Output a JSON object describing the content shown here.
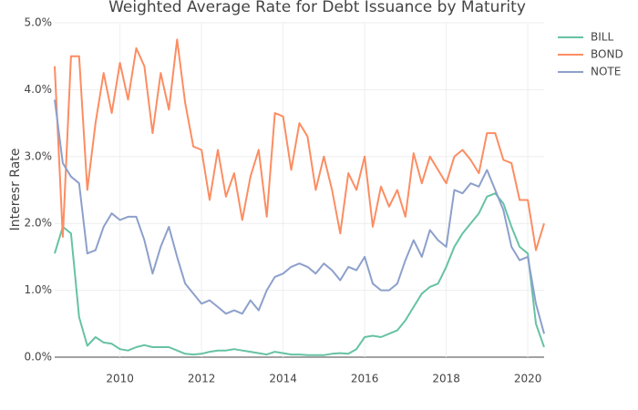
{
  "chart_data": {
    "type": "line",
    "title": "Weighted Average Rate for Debt Issuance by Maturity",
    "y_label": "Interesr Rate",
    "x": [
      2008.4,
      2008.6,
      2008.8,
      2009.0,
      2009.2,
      2009.4,
      2009.6,
      2009.8,
      2010.0,
      2010.2,
      2010.4,
      2010.6,
      2010.8,
      2011.0,
      2011.2,
      2011.4,
      2011.6,
      2011.8,
      2012.0,
      2012.2,
      2012.4,
      2012.6,
      2012.8,
      2013.0,
      2013.2,
      2013.4,
      2013.6,
      2013.8,
      2014.0,
      2014.2,
      2014.4,
      2014.6,
      2014.8,
      2015.0,
      2015.2,
      2015.4,
      2015.6,
      2015.8,
      2016.0,
      2016.2,
      2016.4,
      2016.6,
      2016.8,
      2017.0,
      2017.2,
      2017.4,
      2017.6,
      2017.8,
      2018.0,
      2018.2,
      2018.4,
      2018.6,
      2018.8,
      2019.0,
      2019.2,
      2019.4,
      2019.6,
      2019.8,
      2020.0,
      2020.2,
      2020.4
    ],
    "series": [
      {
        "name": "BILL",
        "color": "#66c2a5",
        "values": [
          1.55,
          1.95,
          1.85,
          0.6,
          0.17,
          0.3,
          0.22,
          0.2,
          0.12,
          0.1,
          0.15,
          0.18,
          0.15,
          0.15,
          0.15,
          0.1,
          0.05,
          0.04,
          0.05,
          0.08,
          0.1,
          0.1,
          0.12,
          0.1,
          0.08,
          0.06,
          0.04,
          0.08,
          0.06,
          0.04,
          0.04,
          0.03,
          0.03,
          0.03,
          0.05,
          0.06,
          0.05,
          0.12,
          0.3,
          0.32,
          0.3,
          0.35,
          0.4,
          0.55,
          0.75,
          0.95,
          1.05,
          1.1,
          1.35,
          1.65,
          1.85,
          2.0,
          2.15,
          2.4,
          2.45,
          2.3,
          1.95,
          1.65,
          1.55,
          0.5,
          0.15
        ]
      },
      {
        "name": "BOND",
        "color": "#fc8d62",
        "values": [
          4.35,
          1.8,
          4.5,
          4.5,
          2.5,
          3.5,
          4.25,
          3.65,
          4.4,
          3.85,
          4.62,
          4.35,
          3.35,
          4.25,
          3.7,
          4.75,
          3.8,
          3.15,
          3.1,
          2.35,
          3.1,
          2.4,
          2.75,
          2.05,
          2.7,
          3.1,
          2.1,
          3.65,
          3.6,
          2.8,
          3.5,
          3.3,
          2.5,
          3.0,
          2.5,
          1.85,
          2.75,
          2.5,
          3.0,
          1.95,
          2.55,
          2.25,
          2.5,
          2.1,
          3.05,
          2.6,
          3.0,
          2.8,
          2.6,
          3.0,
          3.1,
          2.95,
          2.75,
          3.35,
          3.35,
          2.95,
          2.9,
          2.35,
          2.35,
          1.6,
          2.0
        ]
      },
      {
        "name": "NOTE",
        "color": "#8da0cb",
        "values": [
          3.85,
          2.9,
          2.7,
          2.6,
          1.55,
          1.6,
          1.95,
          2.15,
          2.05,
          2.1,
          2.1,
          1.75,
          1.25,
          1.65,
          1.95,
          1.5,
          1.1,
          0.95,
          0.8,
          0.85,
          0.75,
          0.65,
          0.7,
          0.65,
          0.85,
          0.7,
          1.0,
          1.2,
          1.25,
          1.35,
          1.4,
          1.35,
          1.25,
          1.4,
          1.3,
          1.15,
          1.35,
          1.3,
          1.5,
          1.1,
          1.0,
          1.0,
          1.1,
          1.45,
          1.75,
          1.5,
          1.9,
          1.75,
          1.65,
          2.5,
          2.45,
          2.6,
          2.55,
          2.8,
          2.5,
          2.2,
          1.65,
          1.45,
          1.5,
          0.8,
          0.35
        ]
      }
    ],
    "xlim": [
      2008.4,
      2020.4
    ],
    "xticks": [
      2010,
      2012,
      2014,
      2016,
      2018,
      2020
    ],
    "ylim": [
      0,
      5
    ],
    "yticks": [
      {
        "value": 0,
        "label": "0.0%"
      },
      {
        "value": 1,
        "label": "1.0%"
      },
      {
        "value": 2,
        "label": "2.0%"
      },
      {
        "value": 3,
        "label": "3.0%"
      },
      {
        "value": 4,
        "label": "4.0%"
      },
      {
        "value": 5,
        "label": "5.0%"
      }
    ],
    "grid": true,
    "legend": "top-right"
  }
}
